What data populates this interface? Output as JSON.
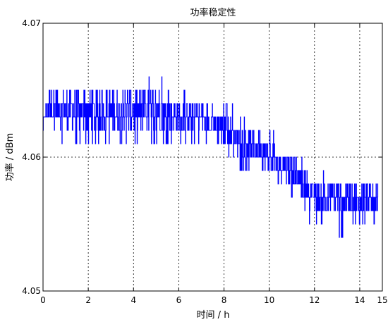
{
  "chart_data": {
    "type": "line",
    "title": "功率稳定性",
    "xlabel": "时间 / h",
    "ylabel": "功率 / dBm",
    "xlim": [
      0,
      15
    ],
    "ylim": [
      4.05,
      4.07
    ],
    "x_ticks": [
      0,
      2,
      4,
      6,
      8,
      10,
      12,
      14,
      15
    ],
    "x_tick_labels": [
      "0",
      "2",
      "4",
      "6",
      "8",
      "10",
      "12",
      "14",
      "15"
    ],
    "y_ticks": [
      4.05,
      4.06,
      4.07
    ],
    "y_tick_labels": [
      "4.05",
      "4.06",
      "4.07"
    ],
    "grid": "dotted",
    "legend": "none",
    "series": [
      {
        "color": "#0000ff",
        "quantization_step": 0.001,
        "x_start": 0,
        "x_end": 14.8,
        "envelope": [
          {
            "x": 0.0,
            "typical_low": 4.062,
            "typical_high": 4.063,
            "min": 4.061,
            "max": 4.064
          },
          {
            "x": 0.3,
            "typical_low": 4.063,
            "typical_high": 4.065,
            "min": 4.062,
            "max": 4.066
          },
          {
            "x": 1.0,
            "typical_low": 4.062,
            "typical_high": 4.065,
            "min": 4.061,
            "max": 4.066
          },
          {
            "x": 2.0,
            "typical_low": 4.062,
            "typical_high": 4.065,
            "min": 4.061,
            "max": 4.065
          },
          {
            "x": 3.0,
            "typical_low": 4.062,
            "typical_high": 4.065,
            "min": 4.061,
            "max": 4.065
          },
          {
            "x": 4.0,
            "typical_low": 4.062,
            "typical_high": 4.065,
            "min": 4.061,
            "max": 4.065
          },
          {
            "x": 5.0,
            "typical_low": 4.062,
            "typical_high": 4.065,
            "min": 4.061,
            "max": 4.066
          },
          {
            "x": 6.0,
            "typical_low": 4.062,
            "typical_high": 4.064,
            "min": 4.061,
            "max": 4.065
          },
          {
            "x": 7.0,
            "typical_low": 4.062,
            "typical_high": 4.064,
            "min": 4.061,
            "max": 4.064
          },
          {
            "x": 8.0,
            "typical_low": 4.061,
            "typical_high": 4.063,
            "min": 4.06,
            "max": 4.064
          },
          {
            "x": 9.0,
            "typical_low": 4.06,
            "typical_high": 4.062,
            "min": 4.059,
            "max": 4.063
          },
          {
            "x": 10.0,
            "typical_low": 4.059,
            "typical_high": 4.061,
            "min": 4.058,
            "max": 4.062
          },
          {
            "x": 11.0,
            "typical_low": 4.058,
            "typical_high": 4.06,
            "min": 4.057,
            "max": 4.061
          },
          {
            "x": 12.0,
            "typical_low": 4.056,
            "typical_high": 4.058,
            "min": 4.055,
            "max": 4.059
          },
          {
            "x": 13.0,
            "typical_low": 4.056,
            "typical_high": 4.058,
            "min": 4.054,
            "max": 4.058
          },
          {
            "x": 14.0,
            "typical_low": 4.055,
            "typical_high": 4.058,
            "min": 4.053,
            "max": 4.058
          },
          {
            "x": 14.8,
            "typical_low": 4.056,
            "typical_high": 4.058,
            "min": 4.055,
            "max": 4.058
          }
        ]
      }
    ]
  }
}
